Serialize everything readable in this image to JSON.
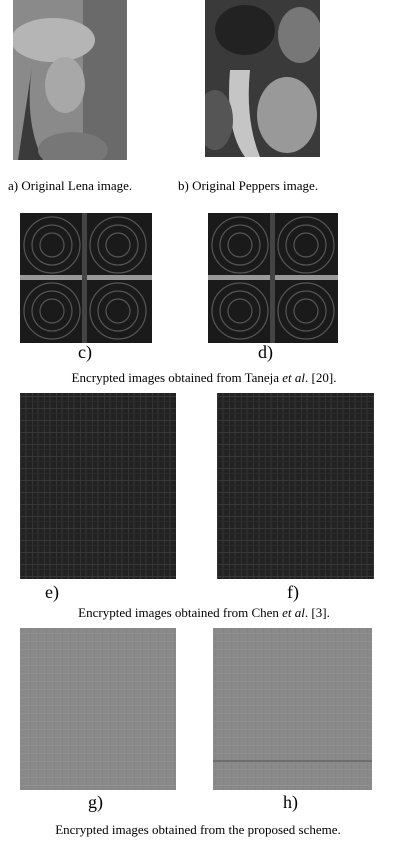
{
  "figure": {
    "panels": [
      {
        "label": "a) Original Lena image."
      },
      {
        "label": "b) Original Peppers image."
      },
      {
        "label": "c)"
      },
      {
        "label": "d)"
      },
      {
        "label": "e)"
      },
      {
        "label": "f)"
      },
      {
        "label": "g)"
      },
      {
        "label": "h)"
      }
    ],
    "row_captions": [
      {
        "before": "Encrypted images obtained from Taneja ",
        "italic": "et al",
        "after": ". [20]."
      },
      {
        "before": "Encrypted images obtained from Chen ",
        "italic": "et al",
        "after": ". [3]."
      },
      {
        "before": "Encrypted images obtained from the proposed scheme.",
        "italic": "",
        "after": ""
      }
    ]
  }
}
